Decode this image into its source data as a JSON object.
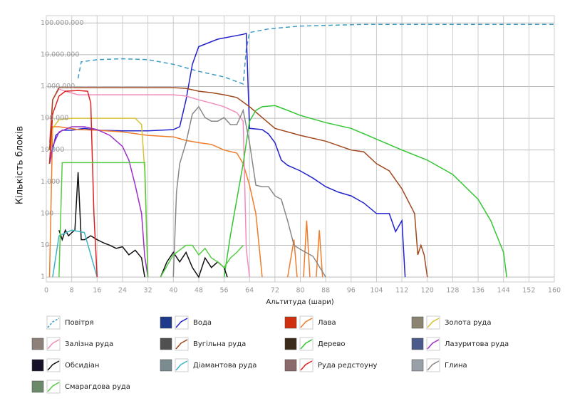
{
  "chart_data": {
    "type": "line",
    "x_label": "Альтитуда (шари)",
    "y_label": "Кількість блоків",
    "log_y": true,
    "grid": true,
    "xlim": [
      0,
      160
    ],
    "xticks": [
      0,
      8,
      16,
      24,
      32,
      40,
      48,
      56,
      64,
      72,
      80,
      88,
      96,
      104,
      112,
      120,
      128,
      136,
      144,
      152,
      160
    ],
    "ylim": [
      0.7,
      170000000
    ],
    "yticks": [
      1,
      10,
      100,
      {
        "value": 1000,
        "label": "1.000"
      },
      {
        "value": 10000,
        "label": "10.000"
      },
      {
        "value": 100000,
        "label": "100.000"
      },
      {
        "value": 1000000,
        "label": "1.000.000"
      },
      {
        "value": 10000000,
        "label": "10.000.000"
      },
      {
        "value": 100000000,
        "label": "100.000.000"
      }
    ],
    "series": [
      {
        "name": "Повітря",
        "color": "#3d9cc4",
        "dashed": true,
        "icon": "#ffffff",
        "x": [
          10,
          11,
          16,
          24,
          32,
          40,
          48,
          56,
          62,
          63,
          64,
          70,
          80,
          100,
          160
        ],
        "values": [
          1800000,
          6000000,
          7000000,
          7500000,
          7000000,
          5000000,
          3000000,
          2000000,
          1200000,
          15000000,
          50000000,
          65000000,
          80000000,
          90000000,
          90000000
        ]
      },
      {
        "name": "Вода",
        "color": "#2222cc",
        "icon": "#1e3a8a",
        "x": [
          1,
          3,
          5,
          8,
          12,
          16,
          24,
          32,
          40,
          42,
          44,
          46,
          48,
          54,
          62,
          63,
          64,
          68,
          70,
          72,
          74,
          76,
          80,
          84,
          88,
          92,
          96,
          100,
          104,
          108,
          110,
          112,
          113
        ],
        "values": [
          3700,
          29000,
          42000,
          42000,
          48000,
          42000,
          40000,
          40000,
          44000,
          54000,
          380000,
          5000000,
          18000000,
          31000000,
          44000000,
          47000000,
          48000,
          44000,
          32000,
          17000,
          4800,
          3300,
          2200,
          1300,
          700,
          470,
          360,
          215,
          100,
          100,
          27,
          60,
          1
        ]
      },
      {
        "name": "Лава",
        "color": "#f07c2a",
        "icon": "#d03010",
        "x": [
          1,
          2,
          4,
          10,
          16,
          24,
          32,
          40,
          44,
          48,
          52,
          56,
          60,
          62,
          64,
          66,
          68,
          72,
          76,
          78,
          79,
          80,
          81,
          82,
          83,
          84,
          85,
          86,
          87
        ],
        "values": [
          1,
          54000,
          54000,
          44000,
          42000,
          37000,
          29000,
          26000,
          20000,
          17000,
          15000,
          10000,
          8000,
          3700,
          780,
          100,
          1,
          null,
          1,
          15,
          1,
          null,
          1,
          60,
          1,
          null,
          1,
          30,
          1
        ]
      },
      {
        "name": "Золота руда",
        "color": "#d6c234",
        "icon": "#8a8470",
        "x": [
          1,
          2,
          4,
          8,
          16,
          24,
          28,
          30,
          31,
          32
        ],
        "values": [
          3700,
          48000,
          90000,
          100000,
          100000,
          100000,
          100000,
          63000,
          2200,
          1
        ]
      },
      {
        "name": "Залізна руда",
        "color": "#f08cbc",
        "icon": "#8c8078",
        "x": [
          1,
          2,
          4,
          6,
          10,
          20,
          30,
          40,
          44,
          48,
          52,
          56,
          60,
          62,
          63,
          64
        ],
        "values": [
          17000,
          380000,
          830000,
          710000,
          550000,
          550000,
          550000,
          550000,
          500000,
          380000,
          300000,
          230000,
          150000,
          81000,
          7.5,
          1
        ]
      },
      {
        "name": "Вугільна руда",
        "color": "#a0481e",
        "icon": "#505050",
        "x": [
          1,
          2,
          4,
          8,
          16,
          24,
          32,
          40,
          44,
          48,
          52,
          56,
          60,
          64,
          68,
          72,
          80,
          88,
          96,
          100,
          104,
          108,
          112,
          116,
          117,
          118,
          119,
          120
        ],
        "values": [
          10000,
          380000,
          920000,
          920000,
          920000,
          920000,
          920000,
          920000,
          875000,
          710000,
          640000,
          550000,
          450000,
          230000,
          105000,
          48000,
          29000,
          19000,
          10000,
          8800,
          3700,
          2200,
          600,
          100,
          5,
          10,
          5,
          1
        ]
      },
      {
        "name": "Дерево",
        "color": "#33c633",
        "icon": "#3a2a18",
        "x": [
          56,
          58,
          60,
          62,
          64,
          66,
          68,
          72,
          76,
          80,
          88,
          96,
          104,
          112,
          120,
          128,
          136,
          140,
          144,
          145
        ],
        "values": [
          1,
          21,
          280,
          3700,
          81000,
          177000,
          230000,
          250000,
          177000,
          123000,
          73000,
          48000,
          22000,
          10000,
          4800,
          1700,
          280,
          59,
          6,
          1
        ]
      },
      {
        "name": "Лазуритова руда",
        "color": "#9b30c8",
        "icon": "#4a5a8a",
        "x": [
          1,
          2,
          4,
          8,
          12,
          16,
          20,
          24,
          26,
          28,
          30,
          31,
          32
        ],
        "values": [
          3700,
          13000,
          37000,
          54000,
          54000,
          44000,
          29000,
          13000,
          4800,
          780,
          100,
          4.5,
          1
        ]
      },
      {
        "name": "Обсидіан",
        "color": "#111111",
        "icon": "#181028",
        "x": [
          4,
          5,
          6,
          7,
          8,
          9,
          10,
          11,
          12,
          14,
          16,
          18,
          20,
          22,
          24,
          26,
          28,
          30,
          31,
          34,
          36,
          38,
          40,
          42,
          44,
          46,
          48,
          50,
          52,
          54,
          56,
          57
        ],
        "values": [
          30,
          15,
          30,
          20,
          25,
          30,
          2000,
          15,
          15,
          20,
          15,
          12,
          10,
          8,
          9,
          5,
          7,
          4,
          1,
          null,
          1,
          3,
          6,
          3,
          6,
          2,
          1,
          4,
          2,
          3,
          2,
          1
        ]
      },
      {
        "name": "Діамантова руда",
        "color": "#3cb4c8",
        "icon": "#7a8c90",
        "x": [
          2,
          4,
          8,
          12,
          16
        ],
        "values": [
          1,
          20,
          30,
          25,
          1
        ]
      },
      {
        "name": "Руда редстоуну",
        "color": "#e02020",
        "icon": "#8a6a6a",
        "x": [
          1,
          2,
          4,
          6,
          10,
          13,
          14,
          15,
          16
        ],
        "values": [
          3700,
          136000,
          500000,
          710000,
          750000,
          710000,
          300000,
          100,
          1
        ]
      },
      {
        "name": "Глина",
        "color": "#888888",
        "icon": "#9aa0a8",
        "x": [
          40,
          41,
          42,
          44,
          46,
          48,
          50,
          52,
          54,
          56,
          58,
          60,
          62,
          64,
          66,
          68,
          70,
          72,
          74,
          76,
          78,
          80,
          84,
          88
        ],
        "values": [
          1,
          470,
          3700,
          17000,
          136000,
          230000,
          105000,
          81000,
          81000,
          105000,
          63000,
          63000,
          177000,
          17000,
          780,
          700,
          700,
          360,
          280,
          59,
          10,
          7.5,
          4.5,
          1
        ]
      },
      {
        "name": "Смарагдова руда",
        "color": "#55cc44",
        "icon": "#6a8a6a",
        "x": [
          4,
          5,
          31,
          32,
          34,
          36,
          40,
          44,
          46,
          48,
          50,
          52,
          54,
          56,
          58,
          60,
          62
        ],
        "values": [
          1,
          4000,
          4000,
          1,
          null,
          1,
          5,
          10,
          10,
          5,
          8,
          4,
          3,
          2,
          4,
          6,
          10
        ]
      }
    ]
  }
}
